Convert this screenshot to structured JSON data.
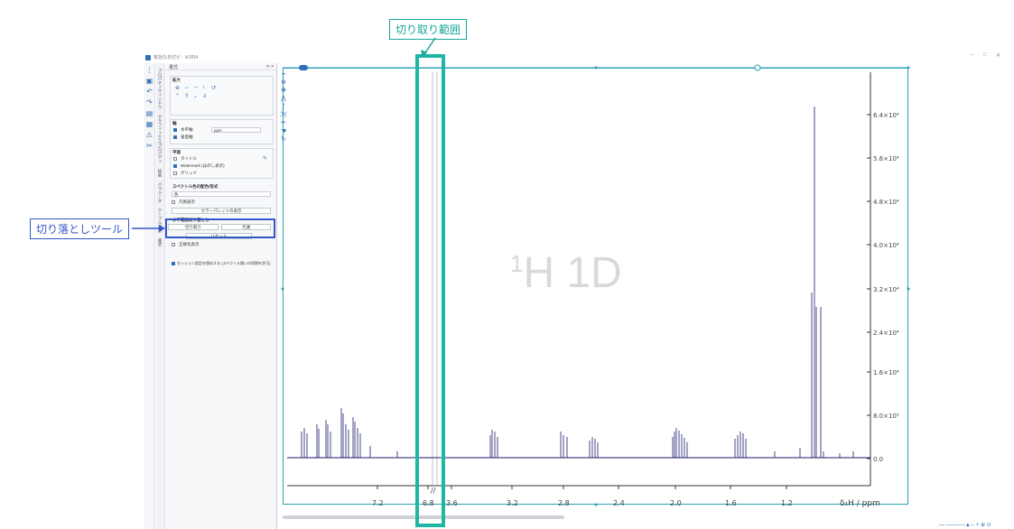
{
  "window": {
    "title": "有効な日付ビ - ※3日4"
  },
  "panel": {
    "header": "書式",
    "sections": {
      "zoom": "拡大",
      "axis": "軸",
      "plane": "平面",
      "spectrum_colors": "スペクトル色の配色/形式",
      "crop": "水平範囲切り落とし"
    },
    "axis_items": {
      "horizontal": "水平軸",
      "horizontal_unit": "ppm",
      "vertical": "垂直軸"
    },
    "plane_items": {
      "title": "タイトル",
      "watermark": "Watermark (はのし表示)",
      "grid": "グリッド"
    },
    "color_items": {
      "mode": "色",
      "overlay": "凡例表示",
      "palette_button": "カラーパレットの表示"
    },
    "crop_items": {
      "cut": "切り取り",
      "restore": "元通",
      "reset": "リセット"
    },
    "normalize": "正規化表示",
    "footer_option": "セッション設定を保存する (スペクトル間いの同期を許可)"
  },
  "vertical_tabs": [
    "プロパティウィンドウ",
    "グラフィックスプロパティ",
    "描画",
    "パラメータ",
    "テーブル表示",
    "書式"
  ],
  "plot": {
    "watermark_sup": "1",
    "watermark_text": "H 1D",
    "x_axis_label": "δ₁H / ppm",
    "x_ticks": [
      "7.2",
      "6.8",
      "3.6",
      "3.2",
      "2.8",
      "2.4",
      "2.0",
      "1.6",
      "1.2"
    ],
    "y_ticks": [
      "6.4×10⁴",
      "5.6×10⁴",
      "4.8×10⁴",
      "4.0×10⁴",
      "3.2×10⁴",
      "2.4×10⁴",
      "1.6×10⁴",
      "8.0×10³",
      "0.0"
    ]
  },
  "annotations": {
    "crop_range": "切り取り範囲",
    "crop_tool": "切り落としツール"
  },
  "colors": {
    "spectrum": "#1a1a6e",
    "frame": "#2aa0b8",
    "annotation_teal": "#17a69a",
    "annotation_blue": "#3456c9"
  }
}
